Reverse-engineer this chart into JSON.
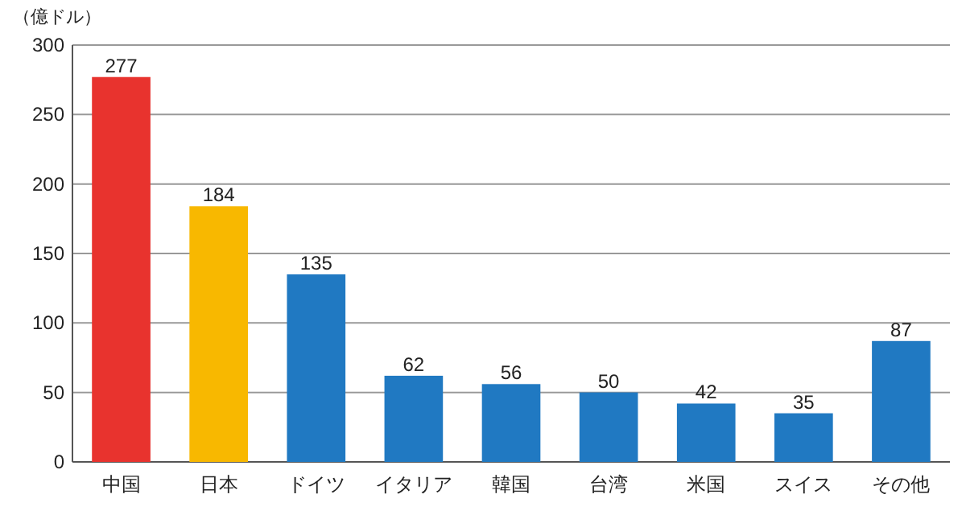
{
  "chart_data": {
    "type": "bar",
    "ylabel": "（億ドル）",
    "categories": [
      "中国",
      "日本",
      "ドイツ",
      "イタリア",
      "韓国",
      "台湾",
      "米国",
      "スイス",
      "その他"
    ],
    "values": [
      277,
      184,
      135,
      62,
      56,
      50,
      42,
      35,
      87
    ],
    "colors": [
      "#e8332e",
      "#f8b800",
      "#2079c2",
      "#2079c2",
      "#2079c2",
      "#2079c2",
      "#2079c2",
      "#2079c2",
      "#2079c2"
    ],
    "ylim": [
      0,
      300
    ],
    "yticks": [
      0,
      50,
      100,
      150,
      200,
      250,
      300
    ],
    "grid": "y",
    "data_labels": true
  }
}
